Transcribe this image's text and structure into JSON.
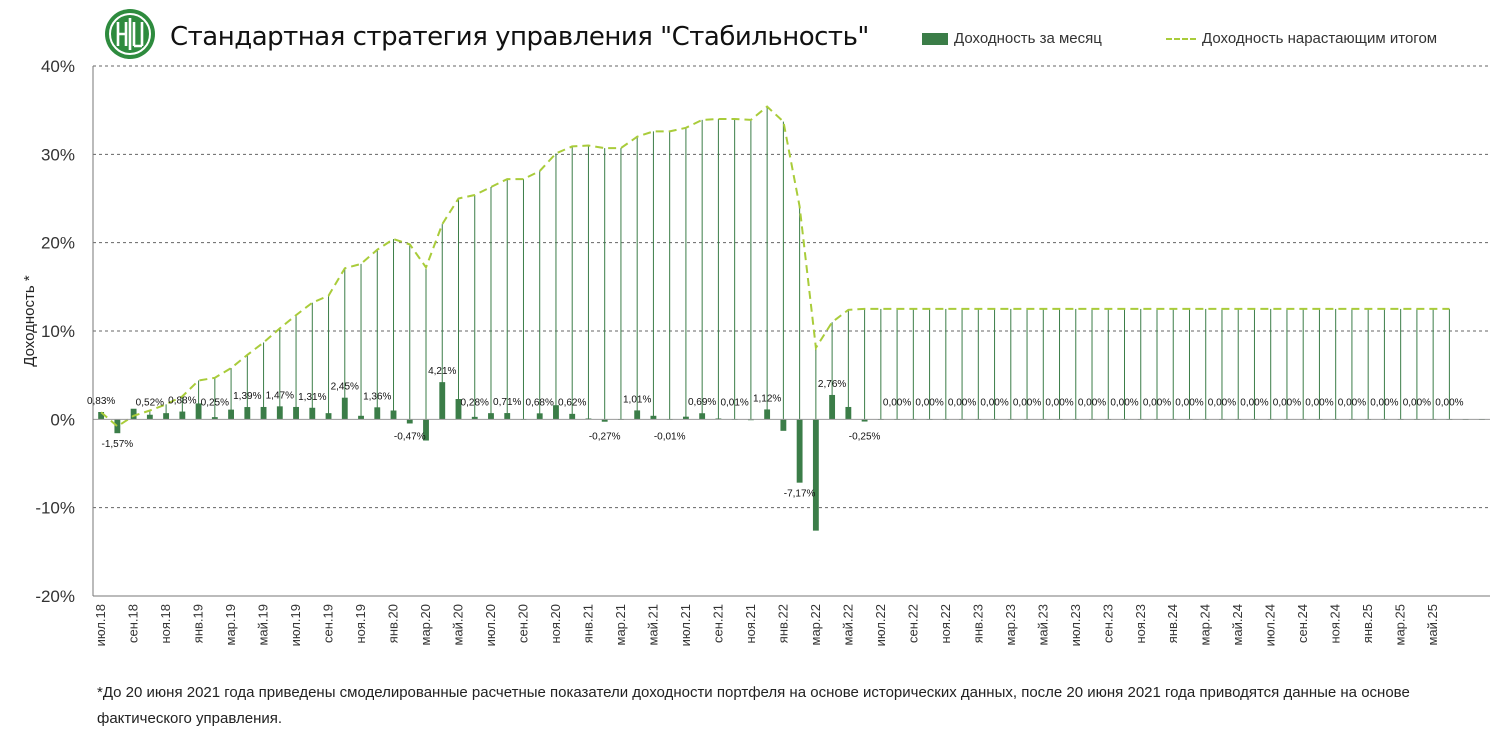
{
  "header": {
    "title": "Стандартная стратегия управления \"Стабильность\"",
    "logo_color": "#2e8b3e"
  },
  "legend": {
    "bar_label": "Доходность за месяц",
    "line_label": "Доходность нарастающим итогом"
  },
  "footnote": "*До 20 июня 2021 года приведены смоделированные расчетные показатели доходности портфеля на основе исторических данных, после 20 июня 2021 года приводятся данные на основе фактического управления.",
  "colors": {
    "bar": "#3b7d48",
    "line": "#a9cc3a",
    "grid": "#666666"
  },
  "chart_data": {
    "type": "bar",
    "ylabel": "Доходность *",
    "ylim": [
      -20,
      40
    ],
    "yticks": [
      "-20%",
      "-10%",
      "0%",
      "10%",
      "20%",
      "30%",
      "40%"
    ],
    "grid": true,
    "legend_position": "top-right",
    "x_tick_labels": [
      "июл.18",
      "сен.18",
      "ноя.18",
      "янв.19",
      "мар.19",
      "май.19",
      "июл.19",
      "сен.19",
      "ноя.19",
      "янв.20",
      "мар.20",
      "май.20",
      "июл.20",
      "сен.20",
      "ноя.20",
      "янв.21",
      "мар.21",
      "май.21",
      "июл.21",
      "сен.21",
      "ноя.21",
      "янв.22",
      "мар.22",
      "май.22",
      "июл.22",
      "сен.22",
      "ноя.22",
      "янв.23",
      "мар.23",
      "май.23",
      "июл.23",
      "сен.23",
      "ноя.23",
      "янв.24",
      "мар.24",
      "май.24",
      "июл.24",
      "сен.24",
      "ноя.24",
      "янв.25",
      "мар.25",
      "май.25"
    ],
    "series": [
      {
        "name": "Доходность за месяц",
        "values": [
          0.83,
          -1.57,
          1.2,
          0.52,
          0.7,
          0.88,
          1.8,
          0.25,
          1.1,
          1.39,
          1.4,
          1.47,
          1.4,
          1.31,
          0.7,
          2.45,
          0.4,
          1.36,
          1.0,
          -0.47,
          -2.4,
          4.21,
          2.3,
          0.28,
          0.7,
          0.71,
          0.0,
          0.68,
          1.6,
          0.62,
          0.1,
          -0.27,
          0.0,
          1.01,
          0.4,
          -0.01,
          0.3,
          0.69,
          0.1,
          0.01,
          -0.1,
          1.12,
          -1.3,
          -7.17,
          -12.6,
          2.76,
          1.4,
          -0.25,
          0,
          0,
          0,
          0,
          0,
          0,
          0,
          0,
          0,
          0,
          0,
          0,
          0,
          0,
          0,
          0,
          0,
          0,
          0,
          0,
          0,
          0,
          0,
          0,
          0,
          0,
          0,
          0,
          0,
          0,
          0,
          0,
          0,
          0,
          0,
          0,
          0,
          0
        ]
      },
      {
        "name": "Доходность нарастающим итогом",
        "values": [
          0.8,
          -0.8,
          0.4,
          1.0,
          1.7,
          2.6,
          4.4,
          4.7,
          5.8,
          7.3,
          8.7,
          10.3,
          11.8,
          13.2,
          14.0,
          17.1,
          17.6,
          19.2,
          20.4,
          19.8,
          17.2,
          22.1,
          25.0,
          25.4,
          26.3,
          27.2,
          27.2,
          28.1,
          30.1,
          30.9,
          31.0,
          30.7,
          30.7,
          32.0,
          32.6,
          32.6,
          33.0,
          33.9,
          34.0,
          34.0,
          33.9,
          35.4,
          33.7,
          24.1,
          8.1,
          11.0,
          12.4,
          12.5,
          12.5,
          12.5,
          12.5,
          12.5,
          12.5,
          12.5,
          12.5,
          12.5,
          12.5,
          12.5,
          12.5,
          12.5,
          12.5,
          12.5,
          12.5,
          12.5,
          12.5,
          12.5,
          12.5,
          12.5,
          12.5,
          12.5,
          12.5,
          12.5,
          12.5,
          12.5,
          12.5,
          12.5,
          12.5,
          12.5,
          12.5,
          12.5,
          12.5,
          12.5,
          12.5,
          12.5
        ]
      }
    ],
    "data_labels": [
      {
        "index": 0,
        "text": "0,83%"
      },
      {
        "index": 1,
        "text": "-1,57%"
      },
      {
        "index": 3,
        "text": "0,52%"
      },
      {
        "index": 5,
        "text": "0,88%"
      },
      {
        "index": 7,
        "text": "0,25%"
      },
      {
        "index": 9,
        "text": "1,39%"
      },
      {
        "index": 11,
        "text": "1,47%"
      },
      {
        "index": 13,
        "text": "1,31%"
      },
      {
        "index": 15,
        "text": "2,45%"
      },
      {
        "index": 17,
        "text": "1,36%"
      },
      {
        "index": 19,
        "text": "-0,47%"
      },
      {
        "index": 21,
        "text": "4,21%"
      },
      {
        "index": 23,
        "text": "0,28%"
      },
      {
        "index": 25,
        "text": "0,71%"
      },
      {
        "index": 27,
        "text": "0,68%"
      },
      {
        "index": 29,
        "text": "0,62%"
      },
      {
        "index": 31,
        "text": "-0,27%"
      },
      {
        "index": 33,
        "text": "1,01%"
      },
      {
        "index": 35,
        "text": "-0,01%"
      },
      {
        "index": 37,
        "text": "0,69%"
      },
      {
        "index": 39,
        "text": "0,01%"
      },
      {
        "index": 41,
        "text": "1,12%"
      },
      {
        "index": 43,
        "text": "-7,17%"
      },
      {
        "index": 45,
        "text": "2,76%"
      },
      {
        "index": 47,
        "text": "-0,25%"
      },
      {
        "index": 49,
        "text": "0,00%"
      },
      {
        "index": 51,
        "text": "0,00%"
      },
      {
        "index": 53,
        "text": "0,00%"
      },
      {
        "index": 55,
        "text": "0,00%"
      },
      {
        "index": 57,
        "text": "0,00%"
      },
      {
        "index": 59,
        "text": "0,00%"
      },
      {
        "index": 61,
        "text": "0,00%"
      },
      {
        "index": 63,
        "text": "0,00%"
      },
      {
        "index": 65,
        "text": "0,00%"
      },
      {
        "index": 67,
        "text": "0,00%"
      },
      {
        "index": 69,
        "text": "0,00%"
      },
      {
        "index": 71,
        "text": "0,00%"
      },
      {
        "index": 73,
        "text": "0,00%"
      },
      {
        "index": 75,
        "text": "0,00%"
      },
      {
        "index": 77,
        "text": "0,00%"
      },
      {
        "index": 79,
        "text": "0,00%"
      },
      {
        "index": 81,
        "text": "0,00%"
      },
      {
        "index": 83,
        "text": "0,00%"
      }
    ]
  }
}
